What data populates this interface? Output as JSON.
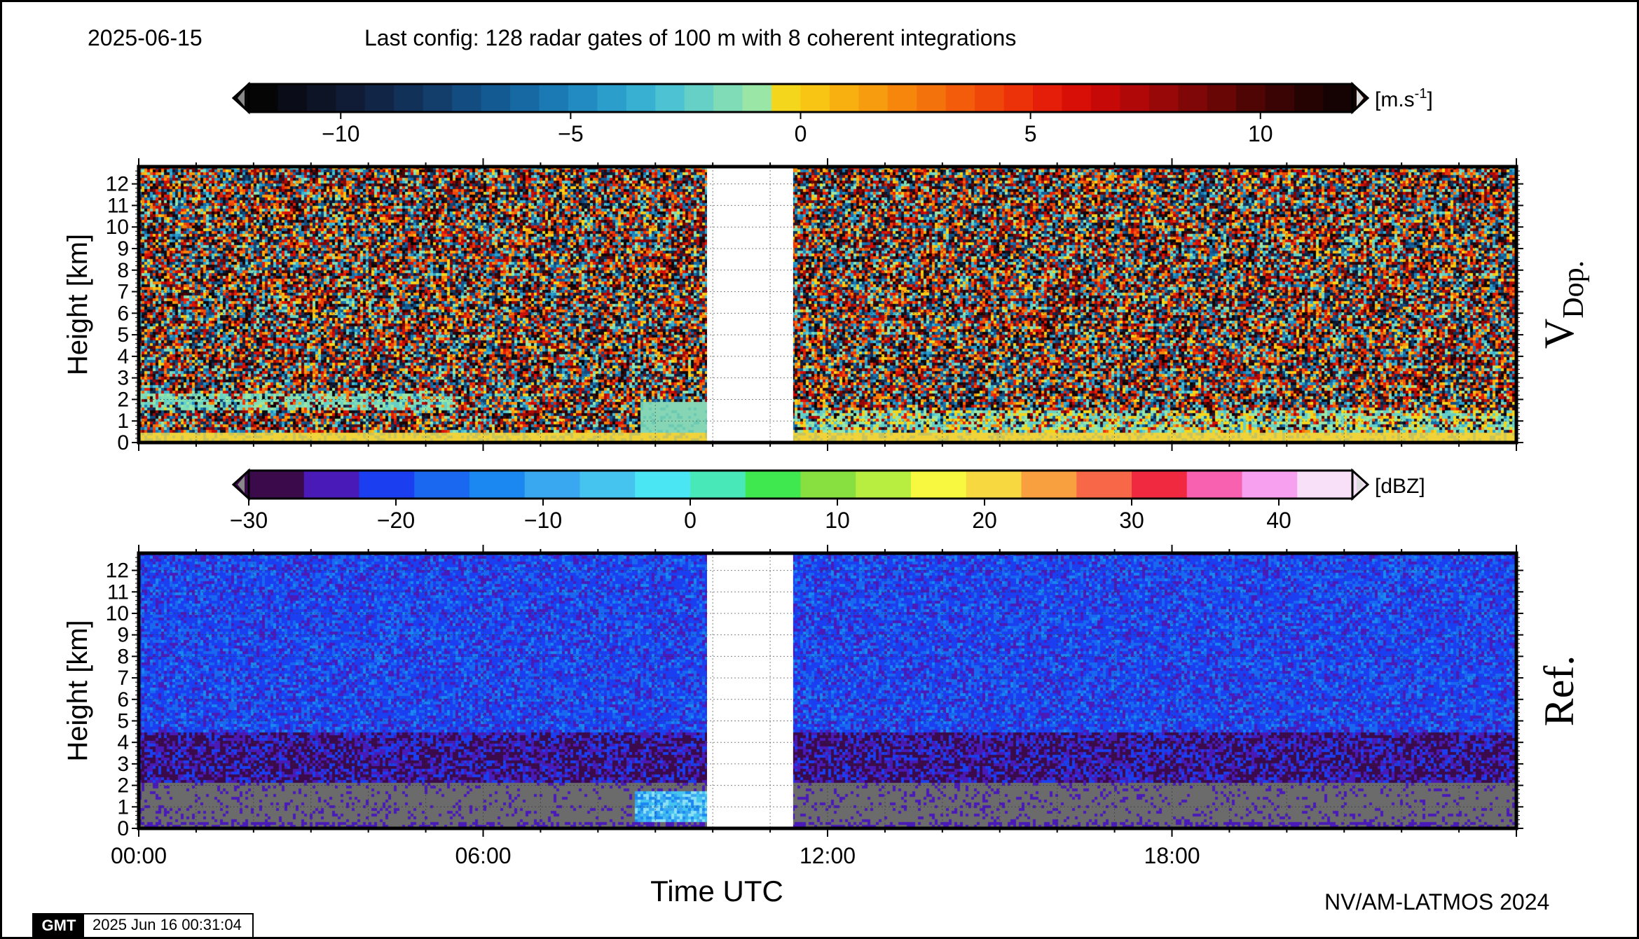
{
  "header": {
    "date": "2025-06-15",
    "config": "Last config: 128 radar gates of 100 m with 8 coherent integrations"
  },
  "footer": {
    "credit": "NV/AM-LATMOS 2024",
    "gmt_logo": "GMT",
    "gmt_stamp": "2025 Jun 16 00:31:04"
  },
  "colors": {
    "noise_top": [
      "#d34a1e",
      "#2f1f1a",
      "#e3a12b",
      "#1b86a8",
      "#9c1a12",
      "#5c5c5c",
      "#f0d33a",
      "#26323e"
    ],
    "ref_background": "#2a62e0",
    "ground_clutter": "#6b6b6b",
    "data_gap": "#ffffff"
  },
  "chart_data": [
    {
      "type": "heatmap",
      "name": "V_Dop",
      "panel_label": "V",
      "panel_label_sub": "Dop.",
      "ylabel": "Height [km]",
      "xlabel": "",
      "xlim": [
        0,
        24
      ],
      "ylim": [
        0,
        12.8
      ],
      "yticks": [
        0,
        1,
        2,
        3,
        4,
        5,
        6,
        7,
        8,
        9,
        10,
        11,
        12
      ],
      "data_gap_hours": [
        9.9,
        11.4
      ],
      "colorbar": {
        "unit_prefix": "[m.s",
        "unit_exp": "-1",
        "unit_suffix": "]",
        "range": [
          -12,
          12
        ],
        "tick_values": [
          -10,
          -5,
          0,
          5,
          10
        ],
        "tick_labels": [
          "−10",
          "−5",
          "0",
          "5",
          "10"
        ],
        "colors": [
          "#050505",
          "#0a0c18",
          "#0d1426",
          "#101c36",
          "#112546",
          "#123158",
          "#133e6c",
          "#134c80",
          "#145a92",
          "#1769a4",
          "#1b7ab4",
          "#228cc2",
          "#2b9ecc",
          "#38b0d2",
          "#4cc2d2",
          "#66d0c6",
          "#80dcb6",
          "#9ae6a6",
          "#f4d71c",
          "#f8c514",
          "#f8b010",
          "#f79c0e",
          "#f6870c",
          "#f4720b",
          "#f25c0a",
          "#ef470a",
          "#eb3209",
          "#e41e08",
          "#d80f07",
          "#c60807",
          "#b00808",
          "#980808",
          "#800707",
          "#680606",
          "#500505",
          "#3a0404",
          "#260303",
          "#150202"
        ]
      }
    },
    {
      "type": "heatmap",
      "name": "Ref",
      "panel_label": "Ref.",
      "ylabel": "Height [km]",
      "xlabel": "Time UTC",
      "xlim": [
        0,
        24
      ],
      "ylim": [
        0,
        12.8
      ],
      "yticks": [
        0,
        1,
        2,
        3,
        4,
        5,
        6,
        7,
        8,
        9,
        10,
        11,
        12
      ],
      "xticks": [
        "00:00",
        "06:00",
        "12:00",
        "18:00"
      ],
      "xtick_values": [
        0,
        6,
        12,
        18
      ],
      "data_gap_hours": [
        9.9,
        11.4
      ],
      "colorbar": {
        "unit": "[dBZ]",
        "range": [
          -30,
          45
        ],
        "tick_values": [
          -30,
          -20,
          -10,
          0,
          10,
          20,
          30,
          40
        ],
        "tick_labels": [
          "−30",
          "−20",
          "−10",
          "0",
          "10",
          "20",
          "30",
          "40"
        ],
        "colors": [
          "#3a0a4a",
          "#4a1ab8",
          "#1a3ef0",
          "#1a68f0",
          "#1a88f0",
          "#3aa8f0",
          "#46c4f0",
          "#4ae6f4",
          "#48e8b8",
          "#40e850",
          "#88e040",
          "#b8ee40",
          "#f8f840",
          "#f8d840",
          "#f8a040",
          "#f86848",
          "#f02840",
          "#f860b0",
          "#f8a0f0",
          "#f8e0f8"
        ]
      }
    }
  ]
}
